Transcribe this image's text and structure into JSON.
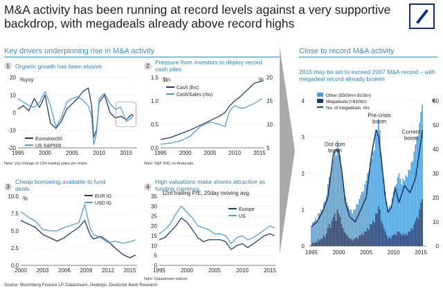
{
  "title": "M&A activity has been running at record levels against a very supportive backdrop, with megadeals already above record highs",
  "left_heading": "Key drivers underpinning rise in M&A activity",
  "right_heading": "Close to record M&A activity",
  "source": "Source: Bloomberg Finance LP, Datastream, Dealogic, Deutsche Bank Research",
  "colors": {
    "dark": "#1f3a6e",
    "light": "#4f9fd6",
    "heading": "#3b8ec9",
    "box": "#d99a9a"
  },
  "chart_data": [
    {
      "type": "line",
      "number": "1",
      "title": "Organic growth has been elusive",
      "ylabel": "%yoy",
      "note": "Note: yoy change of 12m trailing sales per share",
      "ylim": [
        -20,
        20
      ],
      "yticks": [
        "20",
        "10",
        "0",
        "-10",
        "-20"
      ],
      "ytick_values": [
        20,
        10,
        0,
        -10,
        -20
      ],
      "xlim": [
        1995,
        2017
      ],
      "xticks": [
        "1995",
        "2000",
        "2005",
        "2010",
        "2015"
      ],
      "xtick_values": [
        1995,
        2000,
        2005,
        2010,
        2015
      ],
      "legend": [
        "Eurostoxx50",
        "US S&P500"
      ],
      "series": [
        {
          "name": "Eurostoxx50",
          "color": "#1f3a6e",
          "x": [
            1995,
            1996,
            1997,
            1998,
            1999,
            2000,
            2001,
            2002,
            2003,
            2004,
            2005,
            2006,
            2007,
            2008,
            2008.6,
            2009,
            2009.5,
            2010,
            2011,
            2012,
            2013,
            2014,
            2015,
            2016,
            2016.3
          ],
          "y": [
            2,
            4,
            1,
            8,
            3,
            10,
            -6,
            -9,
            -5,
            2,
            5,
            8,
            12,
            14,
            4,
            -14,
            -10,
            6,
            10,
            0,
            -3,
            -2,
            -4,
            -1,
            -2
          ]
        },
        {
          "name": "US S&P500",
          "color": "#4f9fd6",
          "x": [
            1995,
            1996,
            1997,
            1998,
            1999,
            2000,
            2001,
            2002,
            2003,
            2004,
            2005,
            2006,
            2007,
            2008,
            2008.6,
            2009,
            2009.5,
            2010,
            2011,
            2012,
            2013,
            2014,
            2015,
            2016,
            2016.3
          ],
          "y": [
            8,
            6,
            4,
            3,
            6,
            12,
            4,
            -8,
            -3,
            6,
            8,
            9,
            7,
            4,
            -2,
            -18,
            -12,
            8,
            11,
            5,
            2,
            3,
            -5,
            -3,
            -1
          ]
        }
      ]
    },
    {
      "type": "line",
      "number": "2",
      "title": "Pressure from investors to deploy record cash piles",
      "ylabel": "$tn",
      "y2label": "%",
      "note": "Note: S&P 500, ex-financials",
      "ylim": [
        0,
        1.5
      ],
      "yticks": [
        "1.5",
        "1.0",
        "0.5",
        "0.0"
      ],
      "ytick_values": [
        1.5,
        1.0,
        0.5,
        0.0
      ],
      "y2lim": [
        5,
        20
      ],
      "y2ticks": [
        "20",
        "15",
        "10",
        "5"
      ],
      "y2tick_values": [
        20,
        15,
        10,
        5
      ],
      "xlim": [
        1995,
        2016
      ],
      "xticks": [
        "1995",
        "2000",
        "2005",
        "2010",
        "2015"
      ],
      "xtick_values": [
        1995,
        2000,
        2005,
        2010,
        2015
      ],
      "legend": [
        "Cash (lhs)",
        "Cash/Sales (rhs)"
      ],
      "series": [
        {
          "name": "Cash (lhs)",
          "axis": "left",
          "color": "#1f3a6e",
          "x": [
            1995,
            1997,
            1999,
            2001,
            2003,
            2005,
            2007,
            2008,
            2009,
            2010,
            2011,
            2012,
            2013,
            2014,
            2015.5
          ],
          "y": [
            0.18,
            0.22,
            0.3,
            0.38,
            0.48,
            0.58,
            0.68,
            0.75,
            0.9,
            1.0,
            1.08,
            1.18,
            1.28,
            1.38,
            1.42
          ]
        },
        {
          "name": "Cash/Sales (rhs)",
          "axis": "right",
          "color": "#4f9fd6",
          "x": [
            1995,
            1997,
            1999,
            2001,
            2003,
            2005,
            2007,
            2008,
            2009,
            2010,
            2011,
            2012,
            2013,
            2014,
            2015.5
          ],
          "y": [
            5.8,
            6.0,
            6.5,
            7.5,
            9.5,
            10.5,
            10.0,
            9.5,
            13,
            14,
            13.5,
            13.5,
            14,
            14.5,
            15.5
          ]
        }
      ]
    },
    {
      "type": "line",
      "number": "3",
      "title": "Cheap borrowing available to fund deals",
      "ylabel": "%",
      "note": "",
      "ylim": [
        0,
        10
      ],
      "yticks": [
        "10.0",
        "7.5",
        "5.0",
        "2.5",
        "0.0"
      ],
      "ytick_values": [
        10,
        7.5,
        5,
        2.5,
        0
      ],
      "xlim": [
        2000,
        2016
      ],
      "xticks": [
        "2000",
        "2003",
        "2006",
        "2009",
        "2012",
        "2015"
      ],
      "xtick_values": [
        2000,
        2003,
        2006,
        2009,
        2012,
        2015
      ],
      "legend": [
        "EUR IG",
        "USD IG"
      ],
      "series": [
        {
          "name": "EUR IG",
          "color": "#1f3a6e",
          "x": [
            2000,
            2001,
            2002,
            2003,
            2004,
            2005,
            2006,
            2007,
            2008,
            2008.8,
            2009.5,
            2010,
            2011,
            2012,
            2013,
            2014,
            2015,
            2015.8
          ],
          "y": [
            6.5,
            6.0,
            5.5,
            4.5,
            4.0,
            3.5,
            4.0,
            4.8,
            5.5,
            6.5,
            4.5,
            3.8,
            4.2,
            3.5,
            2.5,
            1.6,
            1.1,
            1.5
          ]
        },
        {
          "name": "USD IG",
          "color": "#4f9fd6",
          "x": [
            2000,
            2001,
            2002,
            2003,
            2004,
            2005,
            2006,
            2007,
            2008,
            2008.8,
            2009.5,
            2010,
            2011,
            2012,
            2013,
            2014,
            2015,
            2015.8
          ],
          "y": [
            7.8,
            7.0,
            6.4,
            5.2,
            5.0,
            5.0,
            5.5,
            5.8,
            6.2,
            8.8,
            5.5,
            4.5,
            4.0,
            3.3,
            3.5,
            3.2,
            3.4,
            3.7
          ]
        }
      ]
    },
    {
      "type": "line",
      "number": "4",
      "title": "High valuations make shares attractive as funding currency",
      "subtitle": "12m trailing P/E, 20day moving avg.",
      "note": "Note: Datastream indices",
      "ylim": [
        0,
        35
      ],
      "yticks": [
        "35",
        "30",
        "25",
        "20",
        "15",
        "10",
        "5",
        "0"
      ],
      "ytick_values": [
        35,
        30,
        25,
        20,
        15,
        10,
        5,
        0
      ],
      "xlim": [
        1995,
        2016
      ],
      "xticks": [
        "1995",
        "2000",
        "2005",
        "2010",
        "2015"
      ],
      "xtick_values": [
        1995,
        2000,
        2005,
        2010,
        2015
      ],
      "legend": [
        "Europe",
        "US"
      ],
      "series": [
        {
          "name": "Europe",
          "color": "#1f3a6e",
          "x": [
            1995,
            1996,
            1997,
            1998,
            1999,
            2000,
            2001,
            2002,
            2003,
            2004,
            2005,
            2006,
            2007,
            2008,
            2009,
            2010,
            2011,
            2012,
            2013,
            2014,
            2015,
            2015.8
          ],
          "y": [
            13,
            14,
            17,
            20,
            24,
            22,
            18,
            14,
            12,
            13,
            13,
            13,
            12,
            8,
            10,
            11,
            9,
            11,
            13,
            15,
            16,
            15
          ]
        },
        {
          "name": "US",
          "color": "#4f9fd6",
          "x": [
            1995,
            1996,
            1997,
            1998,
            1999,
            2000,
            2001,
            2002,
            2003,
            2004,
            2005,
            2006,
            2007,
            2008,
            2009,
            2010,
            2011,
            2012,
            2013,
            2014,
            2015,
            2015.8
          ],
          "y": [
            16,
            18,
            21,
            26,
            30,
            27,
            24,
            20,
            19,
            18,
            16,
            16,
            15,
            11,
            14,
            15,
            13,
            14,
            16,
            18,
            20,
            19
          ]
        }
      ]
    },
    {
      "type": "bar",
      "title": "2015 may be set to exceed 2007 M&A record – with megadeal record already broken",
      "ylim": [
        0,
        4
      ],
      "yticks": [
        "4",
        "3",
        "2",
        "1",
        "0"
      ],
      "ytick_values": [
        4,
        3,
        2,
        1,
        0
      ],
      "y2label": "#",
      "y2lim": [
        0,
        60
      ],
      "y2ticks": [
        "60",
        "50",
        "40",
        "30",
        "20",
        "10",
        "0"
      ],
      "y2tick_values": [
        60,
        50,
        40,
        30,
        20,
        10,
        0
      ],
      "xticks": [
        "1995",
        "2000",
        "2005",
        "2010",
        "2015"
      ],
      "xtick_values": [
        1995,
        2000,
        2005,
        2010,
        2015
      ],
      "xlim": [
        1994.5,
        2016
      ],
      "legend": [
        "Other ($500mn-$10bn)",
        "Megadeals (>$10bn)",
        "No. of megadeals, rhs"
      ],
      "annotations": [
        {
          "text": "Dot com",
          "text2": "boom",
          "x": 1999.3,
          "y": 2.75
        },
        {
          "text": "Pre-crisis",
          "text2": "boom",
          "x": 2007.4,
          "y": 3.55
        },
        {
          "text": "Current",
          "text2": "boom",
          "x": 2013.2,
          "y": 3.1
        }
      ],
      "quarters": [
        1995,
        1995.25,
        1995.5,
        1995.75,
        1996,
        1996.25,
        1996.5,
        1996.75,
        1997,
        1997.25,
        1997.5,
        1997.75,
        1998,
        1998.25,
        1998.5,
        1998.75,
        1999,
        1999.25,
        1999.5,
        1999.75,
        2000,
        2000.25,
        2000.5,
        2000.75,
        2001,
        2001.25,
        2001.5,
        2001.75,
        2002,
        2002.25,
        2002.5,
        2002.75,
        2003,
        2003.25,
        2003.5,
        2003.75,
        2004,
        2004.25,
        2004.5,
        2004.75,
        2005,
        2005.25,
        2005.5,
        2005.75,
        2006,
        2006.25,
        2006.5,
        2006.75,
        2007,
        2007.25,
        2007.5,
        2007.75,
        2008,
        2008.25,
        2008.5,
        2008.75,
        2009,
        2009.25,
        2009.5,
        2009.75,
        2010,
        2010.25,
        2010.5,
        2010.75,
        2011,
        2011.25,
        2011.5,
        2011.75,
        2012,
        2012.25,
        2012.5,
        2012.75,
        2013,
        2013.25,
        2013.5,
        2013.75,
        2014,
        2014.25,
        2014.5,
        2014.75,
        2015,
        2015.25
      ],
      "series": [
        {
          "name": "Megadeals (>$10bn)",
          "color": "#1f3a6e",
          "values": [
            0.05,
            0.1,
            0.08,
            0.12,
            0.1,
            0.2,
            0.15,
            0.2,
            0.2,
            0.3,
            0.25,
            0.35,
            0.5,
            0.6,
            0.5,
            0.7,
            0.8,
            0.9,
            0.7,
            1.0,
            0.9,
            0.8,
            0.6,
            0.5,
            0.4,
            0.35,
            0.3,
            0.25,
            0.2,
            0.2,
            0.15,
            0.2,
            0.2,
            0.25,
            0.2,
            0.3,
            0.3,
            0.35,
            0.3,
            0.4,
            0.4,
            0.5,
            0.45,
            0.6,
            0.6,
            0.7,
            0.65,
            0.9,
            0.9,
            1.1,
            1.0,
            0.7,
            0.6,
            0.5,
            0.4,
            0.3,
            0.2,
            0.25,
            0.2,
            0.3,
            0.3,
            0.35,
            0.3,
            0.4,
            0.4,
            0.35,
            0.3,
            0.35,
            0.3,
            0.35,
            0.3,
            0.4,
            0.4,
            0.5,
            0.45,
            0.6,
            0.7,
            0.8,
            0.75,
            1.0,
            1.2,
            1.3
          ]
        },
        {
          "name": "Other ($500mn-$10bn)",
          "color": "#4f9fd6",
          "values": [
            0.5,
            0.55,
            0.6,
            0.65,
            0.6,
            0.7,
            0.75,
            0.8,
            0.8,
            0.9,
            1.0,
            1.05,
            1.2,
            1.3,
            1.4,
            1.5,
            1.6,
            1.7,
            1.8,
            1.9,
            1.8,
            1.7,
            1.5,
            1.3,
            1.1,
            1.0,
            0.9,
            0.85,
            0.8,
            0.8,
            0.75,
            0.8,
            0.8,
            0.9,
            0.95,
            1.0,
            1.1,
            1.15,
            1.2,
            1.3,
            1.4,
            1.5,
            1.6,
            1.7,
            1.8,
            1.9,
            2.0,
            2.2,
            2.3,
            2.4,
            2.2,
            1.8,
            1.5,
            1.3,
            1.1,
            0.9,
            0.8,
            0.85,
            0.9,
            1.0,
            1.2,
            1.3,
            1.4,
            1.5,
            1.6,
            1.5,
            1.4,
            1.5,
            1.5,
            1.6,
            1.6,
            1.7,
            1.7,
            1.8,
            1.9,
            2.0,
            2.1,
            2.2,
            2.3,
            2.4,
            2.5,
            2.6
          ]
        },
        {
          "name": "No. of megadeals, rhs",
          "axis": "right",
          "color": "#1f3a6e",
          "x": [
            1995,
            1996,
            1997,
            1998,
            1999,
            1999.5,
            2000,
            2000.6,
            2001.2,
            2002,
            2003,
            2004,
            2005,
            2006,
            2006.8,
            2007.3,
            2007.8,
            2008.5,
            2009,
            2009.6,
            2010.3,
            2011,
            2012,
            2013,
            2014,
            2015.3
          ],
          "y": [
            8,
            10,
            14,
            20,
            38,
            40,
            39,
            30,
            18,
            12,
            10,
            15,
            20,
            38,
            48,
            45,
            35,
            20,
            14,
            16,
            24,
            18,
            25,
            22,
            28,
            48
          ]
        }
      ]
    }
  ]
}
